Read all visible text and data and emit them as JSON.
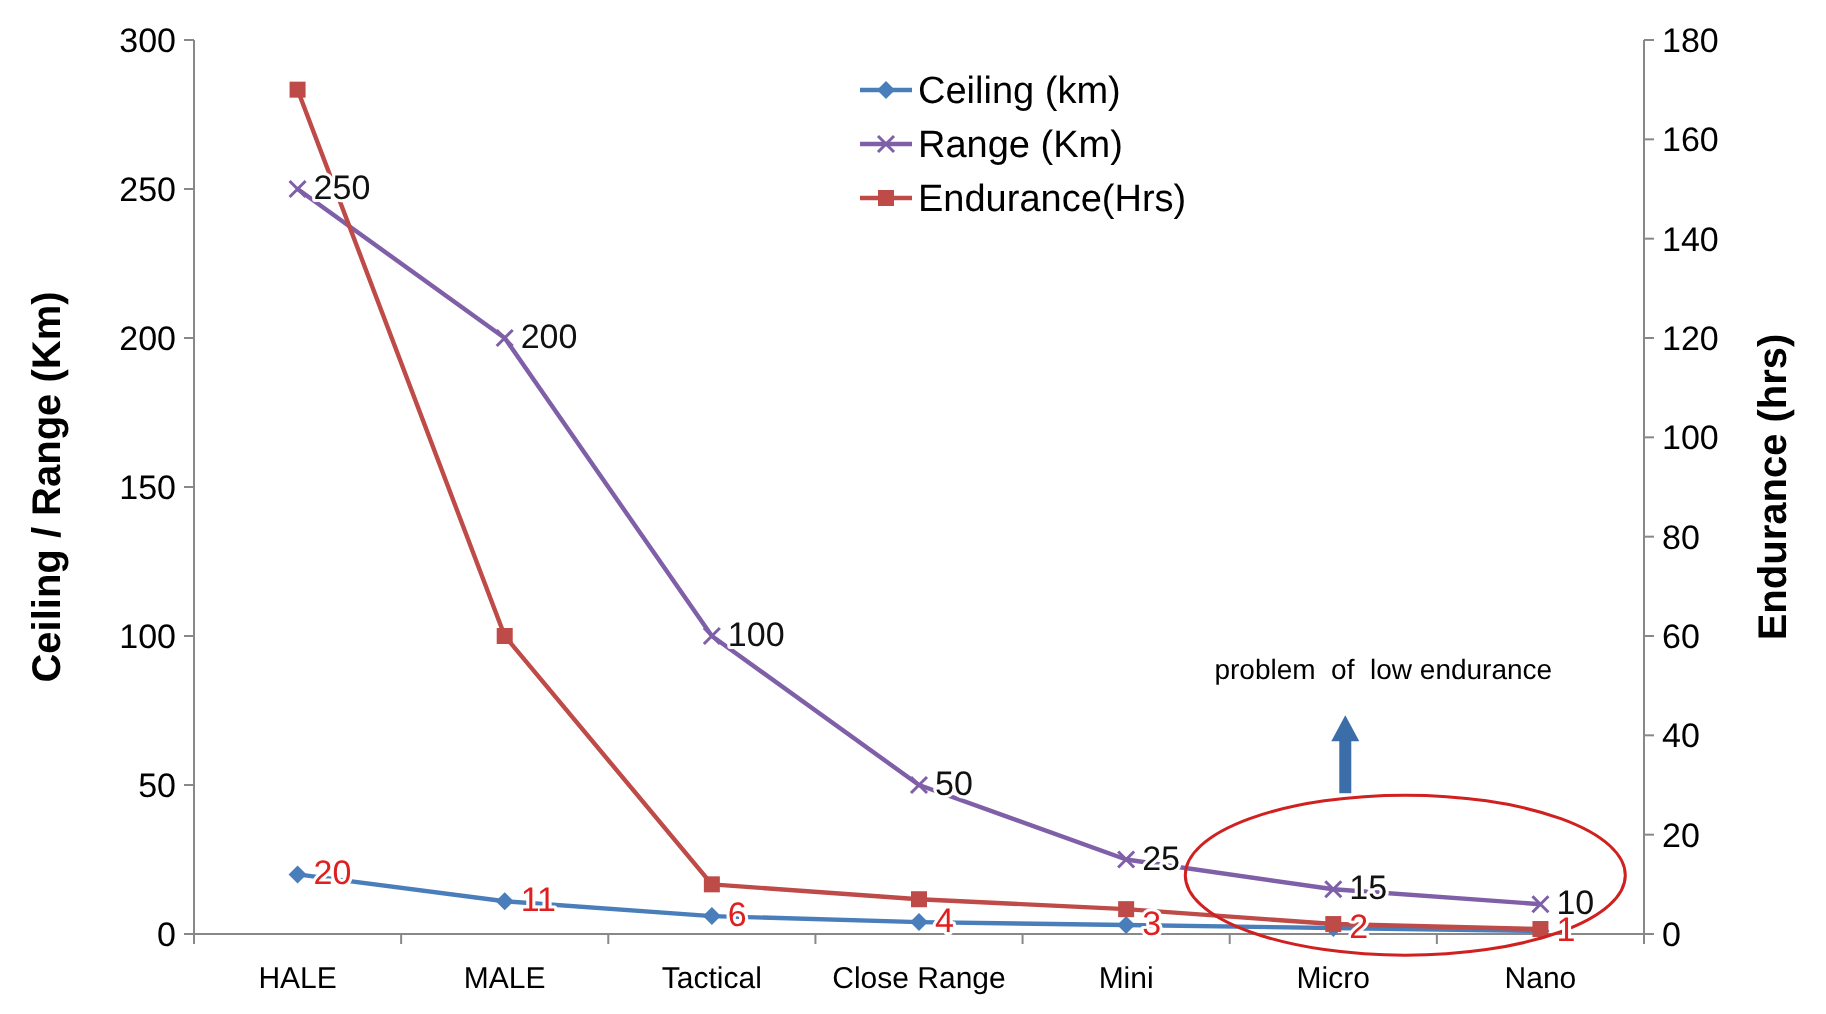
{
  "chart_data": {
    "type": "line",
    "categories": [
      "HALE",
      "MALE",
      "Tactical",
      "Close Range",
      "Mini",
      "Micro",
      "Nano"
    ],
    "ylabel": "Ceiling / Range (Km)",
    "y2label": "Endurance (hrs)",
    "ylim": [
      0,
      300
    ],
    "yticks": [
      0,
      50,
      100,
      150,
      200,
      250,
      300
    ],
    "y2lim": [
      0,
      180
    ],
    "y2ticks": [
      0,
      20,
      40,
      60,
      80,
      100,
      120,
      140,
      160,
      180
    ],
    "legend": "top",
    "grid": false,
    "series": [
      {
        "name": "Ceiling (km)",
        "color": "#4a7ebb",
        "marker": "diamond",
        "values": [
          20,
          11,
          6,
          4,
          3,
          2,
          1
        ],
        "value_labels": [
          "20",
          "11",
          "6",
          "4",
          "3",
          "2",
          "1"
        ]
      },
      {
        "name": "Range (Km)",
        "color": "#7f5fa8",
        "marker": "cross",
        "values": [
          250,
          200,
          100,
          50,
          25,
          15,
          10
        ],
        "value_labels": [
          "250",
          "200",
          "100",
          "50",
          "25",
          "15",
          "10"
        ]
      },
      {
        "name": "Endurance(Hrs)",
        "color": "#be4b48",
        "marker": "square",
        "axis": "y2",
        "values": [
          170,
          60,
          10,
          7,
          5,
          2,
          1
        ]
      }
    ],
    "annotations": [
      "problem  of  low endurance"
    ]
  }
}
